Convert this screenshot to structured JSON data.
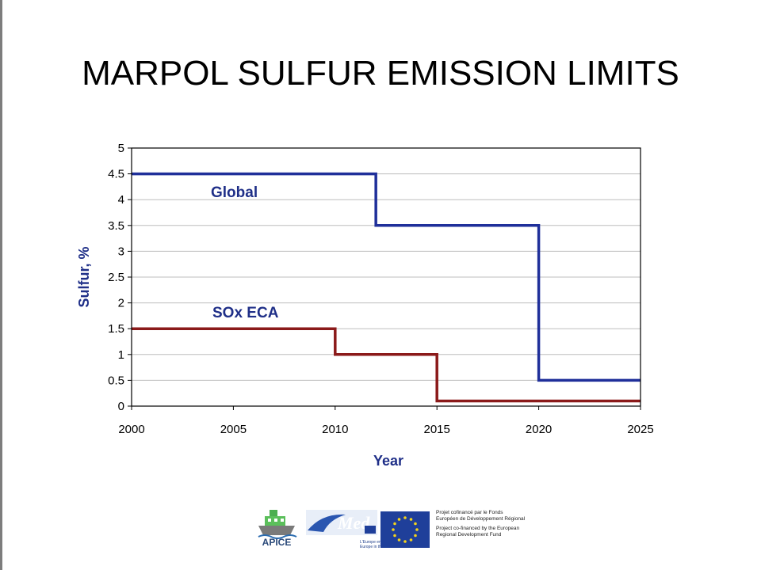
{
  "slide": {
    "title": "MARPOL SULFUR EMISSION LIMITS"
  },
  "chart_data": {
    "type": "line",
    "step": true,
    "xlabel": "Year",
    "ylabel": "Sulfur, %",
    "xlim": [
      2000,
      2025
    ],
    "ylim": [
      0,
      5
    ],
    "x_ticks": [
      "2000",
      "2005",
      "2010",
      "2015",
      "2020",
      "2025"
    ],
    "y_ticks": [
      "0",
      "0.5",
      "1",
      "1.5",
      "2",
      "2.5",
      "3",
      "3.5",
      "4",
      "4.5",
      "5"
    ],
    "grid": true,
    "series": [
      {
        "name": "Global",
        "color": "#1f2f9a",
        "x": [
          2000,
          2012,
          2012,
          2020,
          2020,
          2025
        ],
        "y": [
          4.5,
          4.5,
          3.5,
          3.5,
          0.5,
          0.5
        ]
      },
      {
        "name": "SOx ECA",
        "color": "#8b1a1a",
        "x": [
          2000,
          2010,
          2010,
          2015,
          2015,
          2025
        ],
        "y": [
          1.5,
          1.5,
          1.0,
          1.0,
          0.1,
          0.1
        ]
      }
    ]
  },
  "footer": {
    "apice_label": "APICE",
    "med_label": "Med",
    "med_sub_line1": "L'Europe en Méditerranée",
    "med_sub_line2": "Europe in the Mediterranean",
    "eu_text_fr_1": "Projet cofinancé par le Fonds",
    "eu_text_fr_2": "Européen de Développement Régional",
    "eu_text_en_1": "Project co-financed by the European",
    "eu_text_en_2": "Regional Development Fund",
    "colors": {
      "eu_blue": "#1f3f9a",
      "eu_star": "#f3d31c",
      "med_blue": "#2a56b0"
    }
  }
}
